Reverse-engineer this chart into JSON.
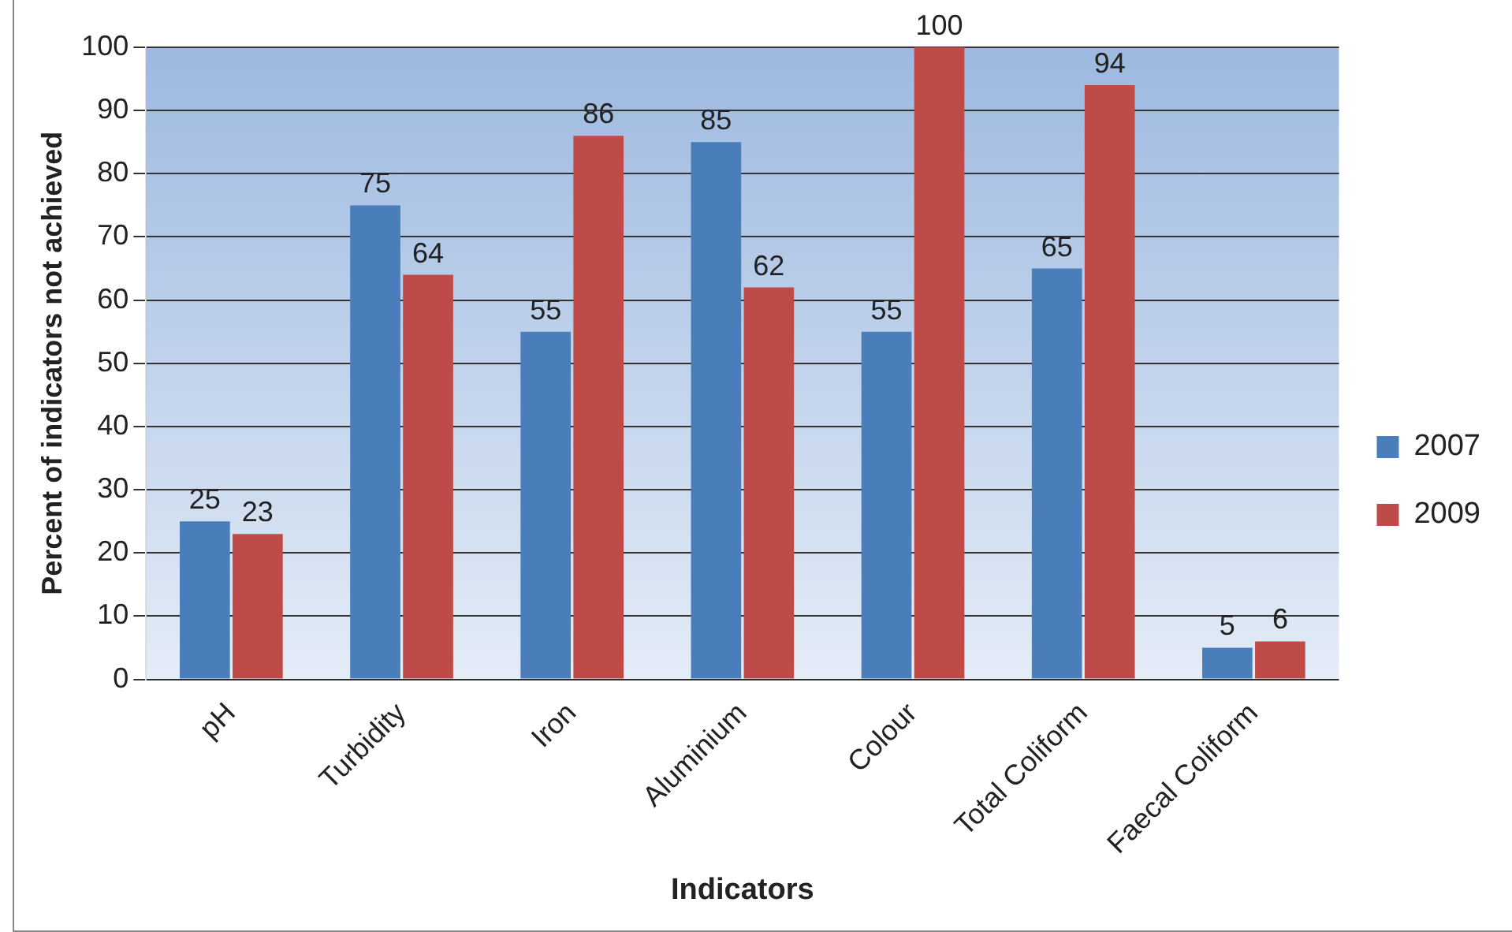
{
  "chart_data": {
    "type": "bar",
    "xlabel": "Indicators",
    "ylabel": "Percent of indicators not achieved",
    "categories": [
      "pH",
      "Turbidity",
      "Iron",
      "Aluminium",
      "Colour",
      "Total Coliform",
      "Faecal Coliform"
    ],
    "series": [
      {
        "name": "2007",
        "color": "#4a7ebb",
        "values": [
          25,
          75,
          55,
          85,
          55,
          65,
          5
        ]
      },
      {
        "name": "2009",
        "color": "#be4b48",
        "values": [
          23,
          64,
          86,
          62,
          100,
          94,
          6
        ]
      }
    ],
    "ylim": [
      0,
      100
    ],
    "yticks": [
      0,
      10,
      20,
      30,
      40,
      50,
      60,
      70,
      80,
      90,
      100
    ],
    "grid": "y",
    "legend": "right",
    "data_labels": true
  }
}
